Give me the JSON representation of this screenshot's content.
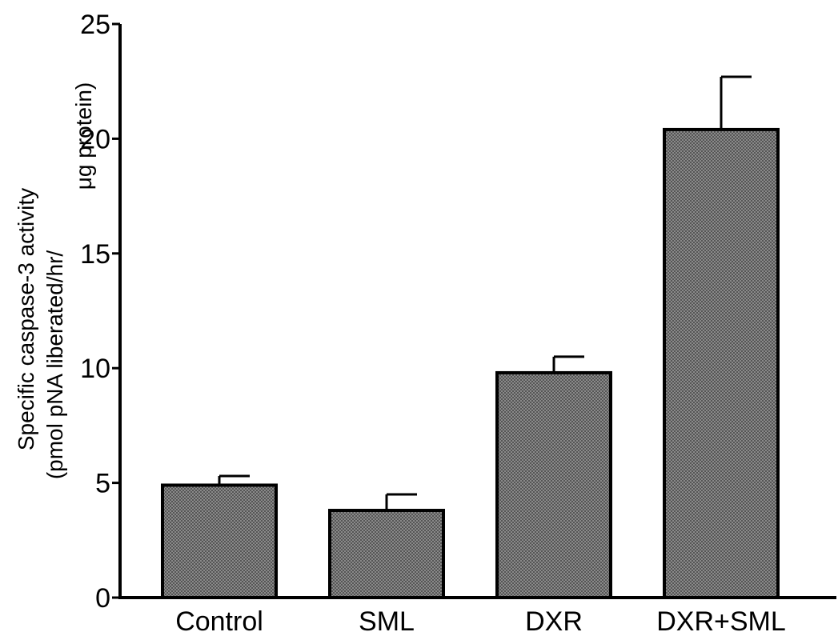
{
  "chart_data": {
    "type": "bar",
    "categories": [
      "Control",
      "SML",
      "DXR",
      "DXR+SML"
    ],
    "values": [
      4.9,
      3.8,
      9.8,
      20.4
    ],
    "errors": [
      0.4,
      0.7,
      0.7,
      2.3
    ],
    "ylabel_lines": [
      "Specific caspase-3 activity",
      "(pmol pNA liberated/hr/",
      "μg protein)"
    ],
    "ylim": [
      0,
      25
    ],
    "yticks": [
      0,
      5,
      10,
      15,
      20,
      25
    ],
    "bar_color": "#6f6f6f",
    "grid": false
  }
}
